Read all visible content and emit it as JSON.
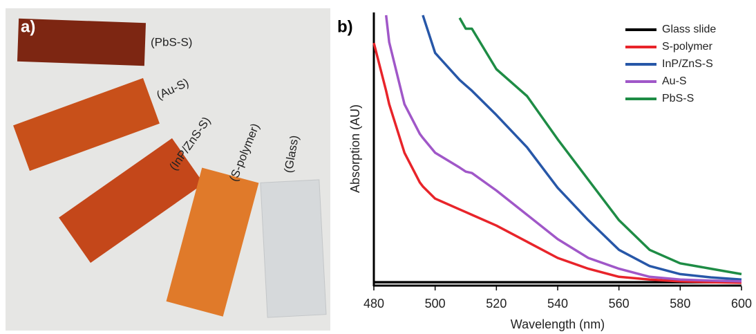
{
  "photo_panel": {
    "label": "a)",
    "samples": [
      "(PbS-S)",
      "(Au-S)",
      "(InP/ZnS-S)",
      "(S-polymer)",
      "(Glass)"
    ]
  },
  "chart_data": {
    "type": "line",
    "panel_label": "b)",
    "x_label": "Wavelength (nm)",
    "y_label": "Absorption (AU)",
    "x": [
      480,
      484,
      485,
      490,
      495,
      496,
      500,
      508,
      510,
      512,
      520,
      530,
      540,
      550,
      560,
      570,
      580,
      590,
      600
    ],
    "xlim": [
      480,
      600
    ],
    "xticks": [
      480,
      500,
      520,
      540,
      560,
      580,
      600
    ],
    "ylim": [
      0,
      100
    ],
    "legend": "upper right",
    "series": [
      {
        "name": "Glass slide",
        "color": "#000000",
        "values": [
          1,
          1,
          1,
          1,
          1,
          1,
          1,
          1,
          1,
          1,
          1,
          1,
          1,
          1,
          1,
          1,
          1,
          1,
          1
        ]
      },
      {
        "name": "S-polymer",
        "color": "#e8242a",
        "values": [
          89.7,
          72,
          67,
          49,
          38,
          36.5,
          32,
          28,
          27,
          26,
          22,
          16,
          10,
          6,
          3,
          2,
          1.3,
          1,
          0.8
        ]
      },
      {
        "name": "InP/ZnS-S",
        "color": "#2757a8",
        "values": [
          null,
          null,
          null,
          null,
          null,
          100,
          86,
          76,
          74,
          72,
          63,
          51,
          36,
          24,
          13,
          7,
          4,
          2.8,
          2
        ]
      },
      {
        "name": "Au-S",
        "color": "#a057c8",
        "values": [
          null,
          100,
          90,
          67,
          56,
          54.5,
          49,
          43.5,
          42,
          41.5,
          35,
          26,
          17,
          10,
          6,
          3,
          2,
          1.6,
          1.3
        ]
      },
      {
        "name": "PbS-S",
        "color": "#1e8c45",
        "values": [
          null,
          null,
          null,
          null,
          null,
          null,
          null,
          99,
          95,
          95,
          80,
          70,
          54,
          39,
          24,
          13,
          8,
          6,
          4
        ]
      }
    ]
  }
}
